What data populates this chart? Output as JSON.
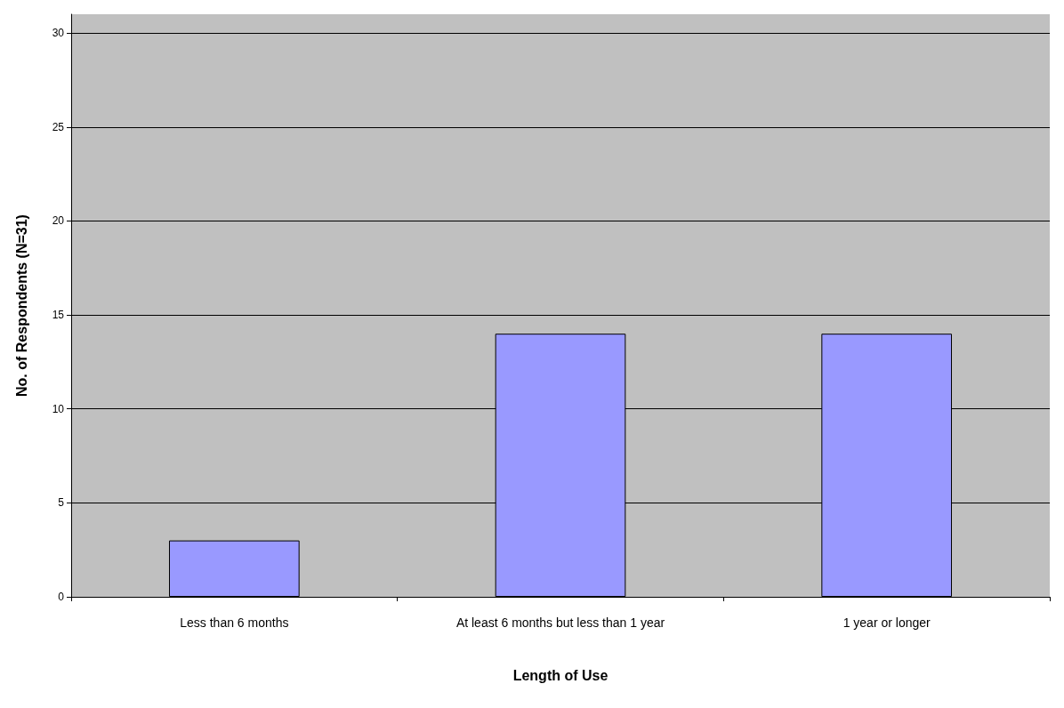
{
  "chart_data": {
    "type": "bar",
    "xlabel": "Length of Use",
    "ylabel": "No. of Respondents (N=31)",
    "categories": [
      "Less than 6 months",
      "At least 6 months but less than 1 year",
      "1 year or longer"
    ],
    "values": [
      3,
      14,
      14
    ],
    "color": "#9999ff",
    "ylim": [
      0,
      31
    ],
    "yticks": [
      0,
      5,
      10,
      15,
      20,
      25,
      30
    ],
    "grid": "y"
  }
}
